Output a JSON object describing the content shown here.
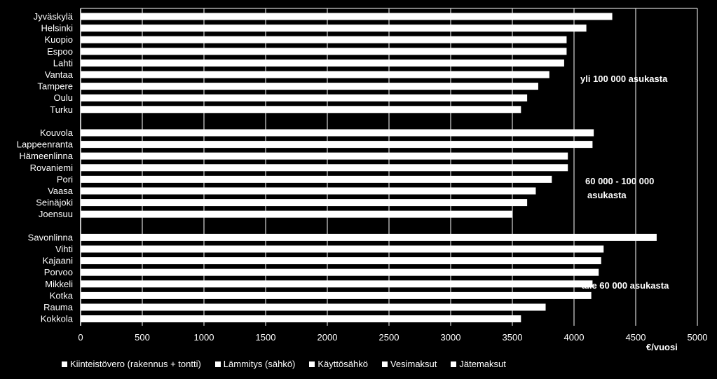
{
  "chart_data": {
    "type": "bar",
    "orientation": "horizontal",
    "stacked": true,
    "xlim": [
      0,
      5000
    ],
    "xticks": [
      "0",
      "500",
      "1000",
      "1500",
      "2000",
      "2500",
      "3000",
      "3500",
      "4000",
      "4500",
      "5000"
    ],
    "xlabel": "€/vuosi",
    "grid": "vertical",
    "legend_position": "bottom",
    "groups": [
      {
        "label": "yli 100 000 asukasta",
        "categories": [
          "Jyväskylä",
          "Helsinki",
          "Kuopio",
          "Espoo",
          "Lahti",
          "Vantaa",
          "Tampere",
          "Oulu",
          "Turku"
        ],
        "totals": [
          4310,
          4100,
          3940,
          3940,
          3920,
          3800,
          3710,
          3620,
          3570
        ]
      },
      {
        "label": "60 000 - 100 000 asukasta",
        "categories": [
          "Kouvola",
          "Lappeenranta",
          "Hämeenlinna",
          "Rovaniemi",
          "Pori",
          "Vaasa",
          "Seinäjoki",
          "Joensuu"
        ],
        "totals": [
          4160,
          4150,
          3950,
          3950,
          3820,
          3690,
          3620,
          3500
        ]
      },
      {
        "label": "alle 60 000 asukasta",
        "categories": [
          "Savonlinna",
          "Vihti",
          "Kajaani",
          "Porvoo",
          "Mikkeli",
          "Kotka",
          "Rauma",
          "Kokkola"
        ],
        "totals": [
          4670,
          4240,
          4220,
          4200,
          4150,
          4140,
          3770,
          3570
        ]
      }
    ],
    "series": [
      {
        "name": "Kiinteistövero (rakennus + tontti)",
        "color": "#ffffff"
      },
      {
        "name": "Lämmitys (sähkö)",
        "color": "#ffffff"
      },
      {
        "name": "Käyttösähkö",
        "color": "#ffffff"
      },
      {
        "name": "Vesimaksut",
        "color": "#ffffff"
      },
      {
        "name": "Jätemaksut",
        "color": "#ffffff"
      }
    ],
    "colors": {
      "background": "#000000",
      "bar": "#ffffff",
      "gridline": "#ffffff",
      "text": "#ffffff"
    }
  }
}
